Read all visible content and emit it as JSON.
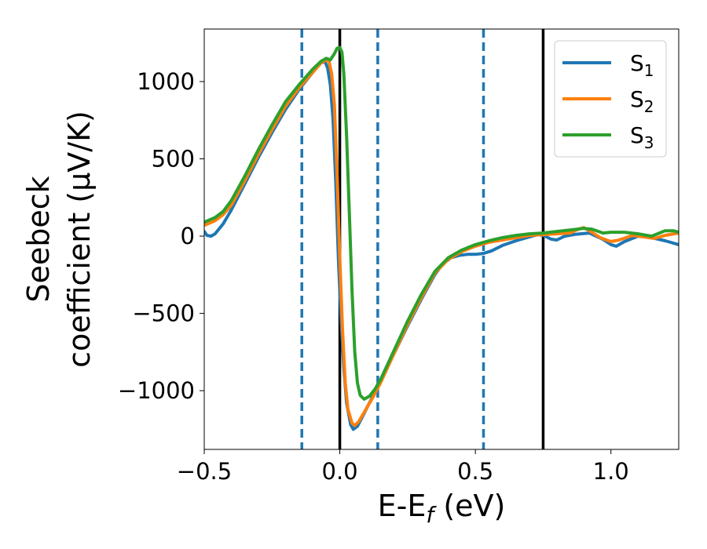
{
  "chart_data": {
    "type": "line",
    "title": "",
    "xlabel": "E-E",
    "xlabel_sub": "f",
    "xlabel_unit": " (eV)",
    "ylabel_line1": "Seebeck",
    "ylabel_line2": "coefficient  (μV/K)",
    "xlim": [
      -0.5,
      1.25
    ],
    "ylim": [
      -1380,
      1340
    ],
    "xticks": [
      -0.5,
      0.0,
      0.5,
      1.0
    ],
    "xtick_labels": [
      "−0.5",
      "0.0",
      "0.5",
      "1.0"
    ],
    "yticks": [
      -1000,
      -500,
      0,
      500,
      1000
    ],
    "ytick_labels": [
      "−1000",
      "−500",
      "0",
      "500",
      "1000"
    ],
    "grid": false,
    "legend_position": "top-right",
    "vlines_solid": [
      0.0,
      0.75
    ],
    "vlines_dashed": [
      -0.14,
      0.14,
      0.53
    ],
    "vline_solid_color": "#000000",
    "vline_dashed_color": "#1f77b4",
    "series": [
      {
        "name": "S",
        "name_sub": "1",
        "color": "#1f77b4",
        "points": [
          [
            -0.5,
            30
          ],
          [
            -0.49,
            5
          ],
          [
            -0.475,
            0
          ],
          [
            -0.46,
            15
          ],
          [
            -0.43,
            80
          ],
          [
            -0.4,
            170
          ],
          [
            -0.35,
            340
          ],
          [
            -0.3,
            510
          ],
          [
            -0.25,
            670
          ],
          [
            -0.2,
            820
          ],
          [
            -0.15,
            950
          ],
          [
            -0.1,
            1060
          ],
          [
            -0.07,
            1120
          ],
          [
            -0.055,
            1130
          ],
          [
            -0.045,
            1090
          ],
          [
            -0.035,
            980
          ],
          [
            -0.025,
            760
          ],
          [
            -0.015,
            350
          ],
          [
            -0.005,
            -150
          ],
          [
            0.005,
            -550
          ],
          [
            0.015,
            -850
          ],
          [
            0.025,
            -1080
          ],
          [
            0.04,
            -1220
          ],
          [
            0.05,
            -1250
          ],
          [
            0.065,
            -1230
          ],
          [
            0.08,
            -1180
          ],
          [
            0.1,
            -1110
          ],
          [
            0.13,
            -1010
          ],
          [
            0.15,
            -940
          ],
          [
            0.2,
            -760
          ],
          [
            0.25,
            -580
          ],
          [
            0.3,
            -410
          ],
          [
            0.35,
            -250
          ],
          [
            0.38,
            -180
          ],
          [
            0.41,
            -140
          ],
          [
            0.44,
            -125
          ],
          [
            0.47,
            -118
          ],
          [
            0.5,
            -118
          ],
          [
            0.53,
            -112
          ],
          [
            0.56,
            -95
          ],
          [
            0.6,
            -60
          ],
          [
            0.65,
            -30
          ],
          [
            0.7,
            -5
          ],
          [
            0.73,
            10
          ],
          [
            0.75,
            5
          ],
          [
            0.78,
            -20
          ],
          [
            0.8,
            -25
          ],
          [
            0.83,
            0
          ],
          [
            0.87,
            12
          ],
          [
            0.92,
            20
          ],
          [
            0.97,
            -20
          ],
          [
            1.0,
            -55
          ],
          [
            1.02,
            -65
          ],
          [
            1.05,
            -35
          ],
          [
            1.1,
            0
          ],
          [
            1.15,
            -10
          ],
          [
            1.2,
            -30
          ],
          [
            1.25,
            -55
          ]
        ]
      },
      {
        "name": "S",
        "name_sub": "2",
        "color": "#ff7f0e",
        "points": [
          [
            -0.5,
            70
          ],
          [
            -0.46,
            100
          ],
          [
            -0.43,
            140
          ],
          [
            -0.4,
            200
          ],
          [
            -0.35,
            360
          ],
          [
            -0.3,
            530
          ],
          [
            -0.25,
            690
          ],
          [
            -0.2,
            840
          ],
          [
            -0.15,
            960
          ],
          [
            -0.1,
            1060
          ],
          [
            -0.07,
            1120
          ],
          [
            -0.05,
            1140
          ],
          [
            -0.04,
            1130
          ],
          [
            -0.03,
            1050
          ],
          [
            -0.02,
            850
          ],
          [
            -0.01,
            400
          ],
          [
            0.0,
            -150
          ],
          [
            0.01,
            -600
          ],
          [
            0.02,
            -950
          ],
          [
            0.03,
            -1120
          ],
          [
            0.045,
            -1210
          ],
          [
            0.055,
            -1225
          ],
          [
            0.07,
            -1200
          ],
          [
            0.09,
            -1140
          ],
          [
            0.12,
            -1050
          ],
          [
            0.15,
            -950
          ],
          [
            0.2,
            -760
          ],
          [
            0.25,
            -570
          ],
          [
            0.3,
            -400
          ],
          [
            0.35,
            -240
          ],
          [
            0.4,
            -150
          ],
          [
            0.45,
            -100
          ],
          [
            0.5,
            -65
          ],
          [
            0.55,
            -40
          ],
          [
            0.6,
            -25
          ],
          [
            0.65,
            -10
          ],
          [
            0.7,
            5
          ],
          [
            0.75,
            10
          ],
          [
            0.8,
            15
          ],
          [
            0.85,
            20
          ],
          [
            0.88,
            45
          ],
          [
            0.9,
            55
          ],
          [
            0.93,
            25
          ],
          [
            0.96,
            -10
          ],
          [
            1.0,
            -35
          ],
          [
            1.03,
            -25
          ],
          [
            1.08,
            5
          ],
          [
            1.12,
            -5
          ],
          [
            1.16,
            -15
          ],
          [
            1.2,
            5
          ],
          [
            1.25,
            20
          ]
        ]
      },
      {
        "name": "S",
        "name_sub": "3",
        "color": "#2ca02c",
        "points": [
          [
            -0.5,
            90
          ],
          [
            -0.46,
            120
          ],
          [
            -0.43,
            160
          ],
          [
            -0.4,
            230
          ],
          [
            -0.35,
            390
          ],
          [
            -0.3,
            560
          ],
          [
            -0.25,
            720
          ],
          [
            -0.2,
            870
          ],
          [
            -0.15,
            980
          ],
          [
            -0.1,
            1080
          ],
          [
            -0.07,
            1130
          ],
          [
            -0.05,
            1150
          ],
          [
            -0.035,
            1140
          ],
          [
            -0.02,
            1180
          ],
          [
            -0.01,
            1215
          ],
          [
            0.0,
            1220
          ],
          [
            0.008,
            1190
          ],
          [
            0.015,
            1050
          ],
          [
            0.025,
            650
          ],
          [
            0.035,
            150
          ],
          [
            0.045,
            -350
          ],
          [
            0.055,
            -750
          ],
          [
            0.065,
            -950
          ],
          [
            0.075,
            -1030
          ],
          [
            0.09,
            -1055
          ],
          [
            0.11,
            -1035
          ],
          [
            0.13,
            -990
          ],
          [
            0.15,
            -930
          ],
          [
            0.2,
            -740
          ],
          [
            0.25,
            -550
          ],
          [
            0.3,
            -380
          ],
          [
            0.35,
            -230
          ],
          [
            0.4,
            -140
          ],
          [
            0.45,
            -90
          ],
          [
            0.5,
            -55
          ],
          [
            0.55,
            -30
          ],
          [
            0.6,
            -10
          ],
          [
            0.65,
            5
          ],
          [
            0.7,
            15
          ],
          [
            0.75,
            20
          ],
          [
            0.8,
            30
          ],
          [
            0.85,
            40
          ],
          [
            0.9,
            50
          ],
          [
            0.93,
            45
          ],
          [
            0.97,
            20
          ],
          [
            1.0,
            25
          ],
          [
            1.05,
            25
          ],
          [
            1.1,
            15
          ],
          [
            1.15,
            0
          ],
          [
            1.2,
            35
          ],
          [
            1.23,
            35
          ],
          [
            1.25,
            25
          ]
        ]
      }
    ]
  }
}
